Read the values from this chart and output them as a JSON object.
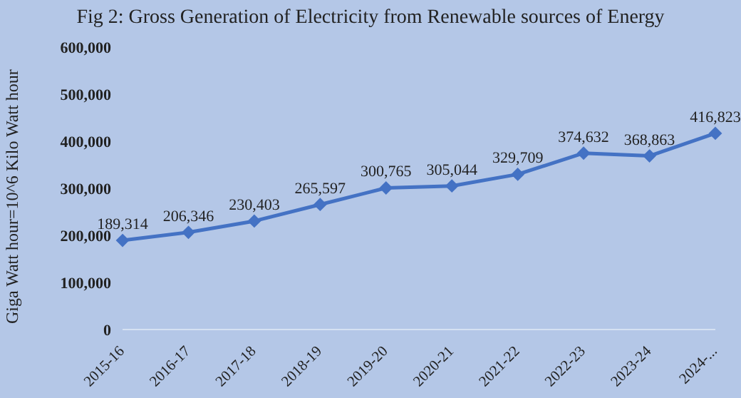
{
  "chart_data": {
    "type": "line",
    "title": "Fig 2: Gross Generation of Electricity from Renewable sources of Energy",
    "ylabel": "Giga Watt hour=10^6  Kilo Watt hour",
    "categories": [
      "2015-16",
      "2016-17",
      "2017-18",
      "2018-19",
      "2019-20",
      "2020-21",
      "2021-22",
      "2022-23",
      "2023-24",
      "2024-..."
    ],
    "series": [
      {
        "color": "#4472c4",
        "values": [
          189314,
          206346,
          230403,
          265597,
          300765,
          305044,
          329709,
          374632,
          368863,
          416823
        ],
        "value_labels": [
          "189,314",
          "206,346",
          "230,403",
          "265,597",
          "300,765",
          "305,044",
          "329,709",
          "374,632",
          "368,863",
          "416,823"
        ]
      }
    ],
    "ylim": [
      0,
      600000
    ],
    "yticks": [
      0,
      {
        "value": 100000,
        "label": "100,000"
      },
      {
        "value": 200000,
        "label": "200,000"
      },
      {
        "value": 300000,
        "label": "300,000"
      },
      {
        "value": 400000,
        "label": "400,000"
      },
      {
        "value": 500000,
        "label": "500,000"
      },
      {
        "value": 600000,
        "label": "600,000"
      }
    ],
    "marker": "diamond"
  }
}
